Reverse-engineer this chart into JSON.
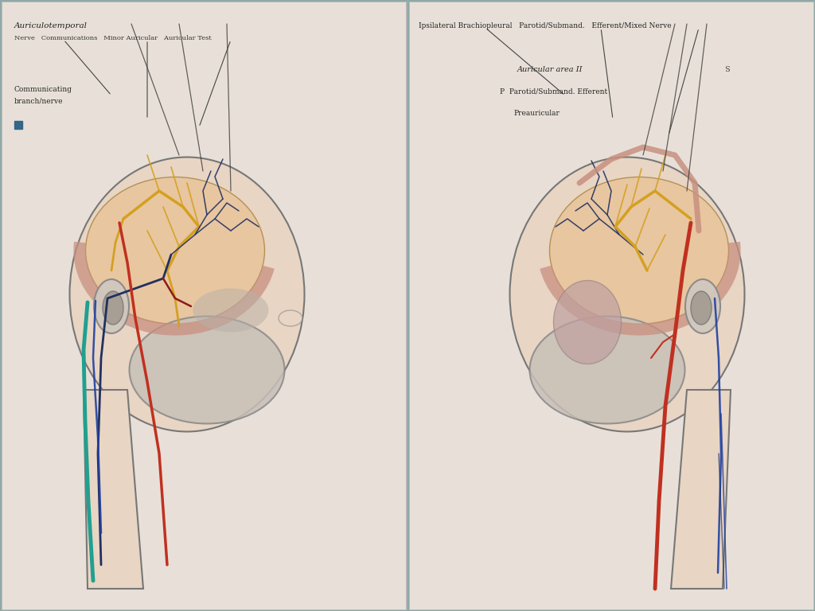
{
  "background_color": "#8fa8a8",
  "colors": {
    "background": "#8fa8a8",
    "face_skin": "#e8d5c4",
    "skull": "#d8d0c8",
    "brain_region": "#e8c49a",
    "dura": "#c89080",
    "nerve_yellow": "#d4a020",
    "nerve_red": "#c03020",
    "nerve_blue": "#203060",
    "nerve_teal": "#20a090",
    "nerve_dark_red": "#8b1a1a",
    "nerve_blue2": "#2040a0",
    "panel_bg_left": "#e8e0d8",
    "panel_bg_right": "#e8e0d8"
  },
  "left_labels": {
    "line1": "Auriculotemporal",
    "line2": "Nerve   Communications   Minor Auricular   Auricular Test",
    "line3": "Communicating",
    "line4": "branch/nerve"
  },
  "right_labels": {
    "line1": "Ipsilateral Brachiopleural   Parotid/Submand.   Efferent/Mixed Nerve",
    "line2": "Auricular area II",
    "line3": "P  Parotid/Submand. Efferent",
    "line4": "Preauricular",
    "line5": "S"
  }
}
